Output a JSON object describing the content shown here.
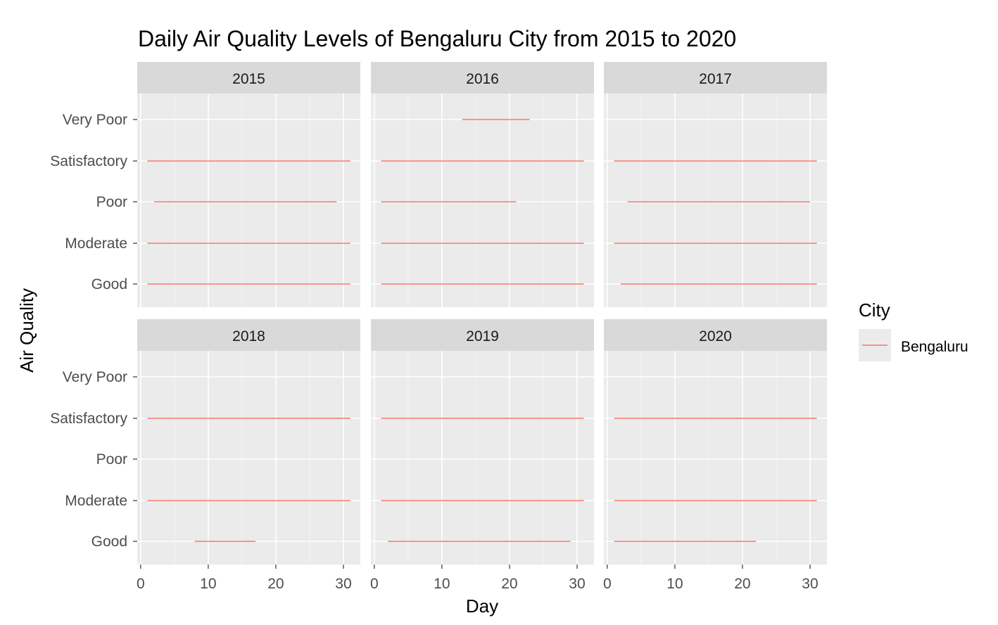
{
  "chart_data": {
    "type": "line",
    "title": "Daily Air Quality Levels of Bengaluru City from 2015 to 2020",
    "xlabel": "Day",
    "ylabel": "Air Quality",
    "x_ticks": [
      0,
      10,
      20,
      30
    ],
    "xlim": [
      -0.5,
      32.5
    ],
    "y_categories": [
      "Good",
      "Moderate",
      "Poor",
      "Satisfactory",
      "Very Poor"
    ],
    "grid": true,
    "legend": {
      "title": "City",
      "position": "right",
      "entries": [
        "Bengaluru"
      ]
    },
    "series_color": "#F8766D",
    "panels": [
      {
        "label": "2015",
        "segments": [
          {
            "category": "Very Poor",
            "x": [],
            "note": ""
          },
          {
            "category": "Satisfactory",
            "x": [
              1,
              31
            ]
          },
          {
            "category": "Poor",
            "x": [
              2,
              29
            ]
          },
          {
            "category": "Moderate",
            "x": [
              1,
              31
            ]
          },
          {
            "category": "Good",
            "x": [
              1,
              31
            ]
          }
        ]
      },
      {
        "label": "2016",
        "segments": [
          {
            "category": "Very Poor",
            "x": [
              13,
              23
            ]
          },
          {
            "category": "Satisfactory",
            "x": [
              1,
              31
            ]
          },
          {
            "category": "Poor",
            "x": [
              1,
              21
            ]
          },
          {
            "category": "Moderate",
            "x": [
              1,
              31
            ]
          },
          {
            "category": "Good",
            "x": [
              1,
              31
            ]
          }
        ]
      },
      {
        "label": "2017",
        "segments": [
          {
            "category": "Satisfactory",
            "x": [
              1,
              31
            ]
          },
          {
            "category": "Poor",
            "x": [
              3,
              30
            ]
          },
          {
            "category": "Moderate",
            "x": [
              1,
              31
            ]
          },
          {
            "category": "Good",
            "x": [
              2,
              31
            ]
          }
        ]
      },
      {
        "label": "2018",
        "segments": [
          {
            "category": "Satisfactory",
            "x": [
              1,
              31
            ]
          },
          {
            "category": "Moderate",
            "x": [
              1,
              31
            ]
          },
          {
            "category": "Good",
            "x": [
              8,
              17
            ]
          }
        ]
      },
      {
        "label": "2019",
        "segments": [
          {
            "category": "Satisfactory",
            "x": [
              1,
              31
            ]
          },
          {
            "category": "Moderate",
            "x": [
              1,
              31
            ]
          },
          {
            "category": "Good",
            "x": [
              2,
              29
            ]
          }
        ]
      },
      {
        "label": "2020",
        "segments": [
          {
            "category": "Satisfactory",
            "x": [
              1,
              31
            ]
          },
          {
            "category": "Moderate",
            "x": [
              1,
              31
            ]
          },
          {
            "category": "Good",
            "x": [
              1,
              22
            ]
          }
        ]
      }
    ]
  }
}
